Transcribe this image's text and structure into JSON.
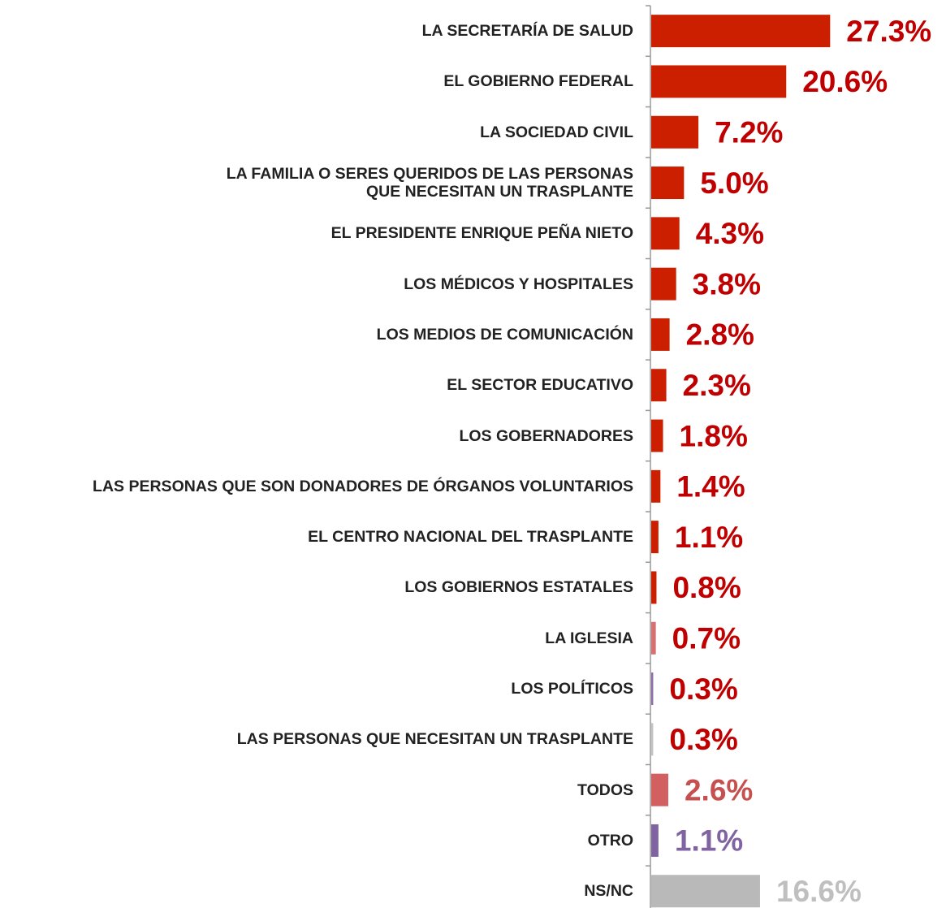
{
  "chart_data": {
    "type": "barh",
    "categories": [
      "LA SECRETARÍA DE SALUD",
      "EL GOBIERNO FEDERAL",
      "LA SOCIEDAD CIVIL",
      "LA FAMILIA O SERES QUERIDOS DE LAS PERSONAS\nQUE NECESITAN UN TRASPLANTE",
      "EL PRESIDENTE ENRIQUE PEÑA NIETO",
      "LOS MÉDICOS Y HOSPITALES",
      "LOS MEDIOS DE COMUNICACIÓN",
      "EL SECTOR EDUCATIVO",
      "LOS GOBERNADORES",
      "LAS PERSONAS QUE SON DONADORES DE ÓRGANOS VOLUNTARIOS",
      "EL CENTRO NACIONAL DEL TRASPLANTE",
      "LOS GOBIERNOS ESTATALES",
      "LA IGLESIA",
      "LOS POLÍTICOS",
      "LAS PERSONAS QUE NECESITAN UN TRASPLANTE",
      "TODOS",
      "OTRO",
      "NS/NC"
    ],
    "values": [
      27.3,
      20.6,
      7.2,
      5.0,
      4.3,
      3.8,
      2.8,
      2.3,
      1.8,
      1.4,
      1.1,
      0.8,
      0.7,
      0.3,
      0.3,
      2.6,
      1.1,
      16.6
    ],
    "value_labels": [
      "27.3%",
      "20.6%",
      "7.2%",
      "5.0%",
      "4.3%",
      "3.8%",
      "2.8%",
      "2.3%",
      "1.8%",
      "1.4%",
      "1.1%",
      "0.8%",
      "0.7%",
      "0.3%",
      "0.3%",
      "2.6%",
      "1.1%",
      "16.6%"
    ],
    "colors": [
      "#cc1f00",
      "#cc1f00",
      "#cc1f00",
      "#cc1f00",
      "#cc1f00",
      "#cc1f00",
      "#cc1f00",
      "#cc1f00",
      "#cc1f00",
      "#cc1f00",
      "#cc1f00",
      "#cc1f00",
      "#d77070",
      "#8e6cae",
      "#c4c4c4",
      "#d36060",
      "#8064a2",
      "#b9b9b9"
    ],
    "label_colors": [
      "#c00000",
      "#c00000",
      "#c00000",
      "#c00000",
      "#c00000",
      "#c00000",
      "#c00000",
      "#c00000",
      "#c00000",
      "#c00000",
      "#c00000",
      "#c00000",
      "#c00000",
      "#c00000",
      "#c00000",
      "#c65050",
      "#8064a2",
      "#bfbfbf"
    ]
  }
}
